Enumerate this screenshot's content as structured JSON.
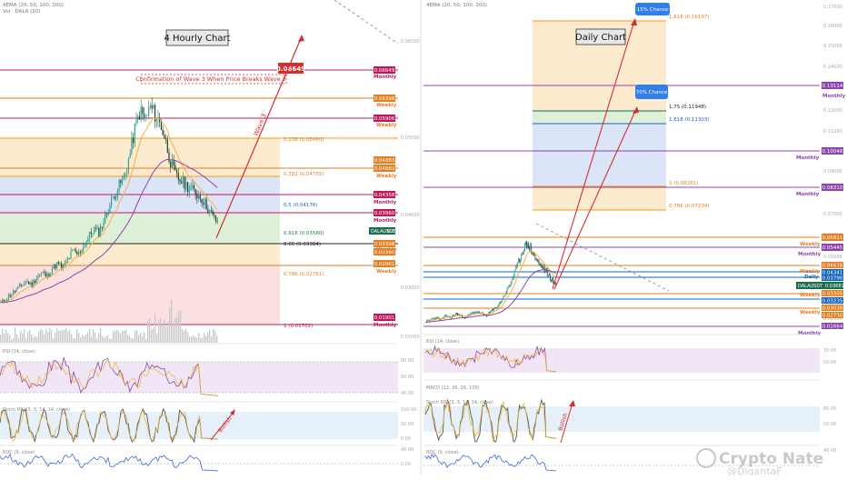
{
  "colors": {
    "monthly": "#c2185b",
    "weekly": "#e67e22",
    "daily": "#1565c0",
    "fib": "#f39c12",
    "trend": "#d32f2f",
    "price": "#1a6e4a",
    "rsi": "#8e44ad",
    "macd_up": "#26a69a",
    "stoch": "#555555",
    "roc": "#3a6bd8"
  },
  "left_panel": {
    "indicator_header": "4EMA (20, 50, 100, 200)",
    "volume_header": "Vol · DALA (20)",
    "chart_title": "4 Hourly Chart",
    "annotation": "Confirmation of Wave 3 When Price Breaks Wave 2",
    "target_label": "0.06649",
    "wave_label": "Wave 3",
    "fib_levels": [
      {
        "label": "0.236 (0.05480)"
      },
      {
        "label": "0.382 (0.04755)"
      },
      {
        "label": "0.5 (0.04176)"
      },
      {
        "label": "0.618 (0.03580)"
      },
      {
        "label": "0.65 (0.03384)"
      },
      {
        "label": "0.786 (0.02761)"
      },
      {
        "label": "1 (0.01702)"
      }
    ],
    "levels": [
      {
        "price": "0.06649",
        "tf": "Monthly"
      },
      {
        "price": "0.06398",
        "tf": "Weekly"
      },
      {
        "price": "0.05906",
        "tf": "Weekly"
      },
      {
        "price": "0.04883",
        "tf": "Weekly"
      },
      {
        "price": "0.04882",
        "tf": "Weekly"
      },
      {
        "price": "0.04358",
        "tf": "Monthly"
      },
      {
        "price": "0.03960",
        "tf": "Monthly"
      },
      {
        "price": "0.03398",
        "tf": "Weekly"
      },
      {
        "price": "0.03380",
        "tf": "Weekly"
      },
      {
        "price": "0.02961",
        "tf": "Weekly"
      },
      {
        "price": "0.01901",
        "tf": "Monthly"
      }
    ],
    "price_tag": "DALAUSDT",
    "price_value": "0.03661",
    "axis_ticks": [
      "0.07500",
      "0.06500",
      "0.05000",
      "0.04000",
      "0.03000",
      "0.02000",
      "0.01000"
    ],
    "rsi_header": "RSI (14, close)",
    "rsi_ticks": [
      "80.00",
      "60.00",
      "40.00"
    ],
    "stoch_header": "Stoch RSI (3, 3, 14, 14, close)",
    "stoch_ticks": [
      "100.00",
      "50.00",
      "0.00"
    ],
    "stoch_arrow_label": "Bullish",
    "roc_header": "ROC (9, close)",
    "roc_ticks": [
      "40.00",
      "0.00"
    ]
  },
  "right_panel": {
    "indicator_header": "4EMA (20, 50, 100, 200)",
    "chart_title": "Daily Chart",
    "callout_1": "15% Chance",
    "callout_2": "70% Chance",
    "fib_levels": [
      {
        "label": "1.618 (0.16197)"
      },
      {
        "label": "1.75 (0.11948)"
      },
      {
        "label": "1.618 (0.11303)"
      },
      {
        "label": "1 (0.08281)"
      },
      {
        "label": "0.786 (0.07234)"
      }
    ],
    "levels": [
      {
        "price": "0.13114",
        "tf": "Monthly"
      },
      {
        "price": "0.10048",
        "tf": "Monthly"
      },
      {
        "price": "0.08310",
        "tf": "Monthly"
      },
      {
        "price": "0.05811",
        "tf": "Weekly"
      },
      {
        "price": "0.05445",
        "tf": "Monthly"
      },
      {
        "price": "0.04616",
        "tf": "Weekly"
      },
      {
        "price": "0.04341",
        "tf": "Weekly"
      },
      {
        "price": "0.03790",
        "tf": "Daily"
      },
      {
        "price": "0.03305",
        "tf": "Weekly"
      },
      {
        "price": "0.03235",
        "tf": "Weekly"
      },
      {
        "price": "0.03038",
        "tf": "Weekly"
      },
      {
        "price": "0.02730",
        "tf": "Weekly"
      },
      {
        "price": "0.01664",
        "tf": "Monthly"
      }
    ],
    "price_tag": "DALAUSDT",
    "price_value": "0.03681",
    "axis_ticks": [
      "0.17000",
      "0.16000",
      "0.15000",
      "0.14000",
      "0.12000",
      "0.11000",
      "0.09000",
      "0.07000",
      "0.06000",
      "0.05000",
      "0.02000"
    ],
    "rsi_header": "RSI (14, close)",
    "rsi_ticks": [
      "70.00",
      "50.00"
    ],
    "macd_header": "MACD (12, 26, 26, 100)",
    "stoch_header": "Stoch RSI (3, 3, 14, 14, close)",
    "stoch_ticks": [
      "80.00",
      "50.00"
    ],
    "stoch_arrow_label": "Bullish",
    "roc_header": "ROC (9, close)",
    "roc_ticks": [
      "40.00"
    ]
  },
  "watermark": "Crypto Nate",
  "watermark_sub": "@DigantaF",
  "chart_data": [
    {
      "type": "candlestick",
      "title": "4 Hourly Chart",
      "symbol": "DALAUSDT",
      "ylim": [
        0.012,
        0.075
      ],
      "last_price": 0.03661,
      "close_series": [
        0.018,
        0.019,
        0.02,
        0.021,
        0.022,
        0.023,
        0.022,
        0.024,
        0.025,
        0.024,
        0.026,
        0.027,
        0.026,
        0.028,
        0.03,
        0.029,
        0.031,
        0.033,
        0.035,
        0.034,
        0.037,
        0.04,
        0.043,
        0.045,
        0.047,
        0.052,
        0.058,
        0.062,
        0.06,
        0.063,
        0.061,
        0.059,
        0.055,
        0.05,
        0.047,
        0.046,
        0.045,
        0.044,
        0.043,
        0.042,
        0.04,
        0.038,
        0.0366
      ],
      "target": 0.06649
    },
    {
      "type": "candlestick",
      "title": "Daily Chart",
      "symbol": "DALAUSDT",
      "ylim": [
        0.015,
        0.175
      ],
      "last_price": 0.03681,
      "close_series": [
        0.018,
        0.019,
        0.02,
        0.019,
        0.021,
        0.02,
        0.022,
        0.021,
        0.02,
        0.022,
        0.023,
        0.022,
        0.021,
        0.023,
        0.025,
        0.028,
        0.033,
        0.038,
        0.045,
        0.052,
        0.058,
        0.056,
        0.05,
        0.047,
        0.044,
        0.04,
        0.0368
      ],
      "targets": [
        0.16197,
        0.11948
      ]
    }
  ]
}
